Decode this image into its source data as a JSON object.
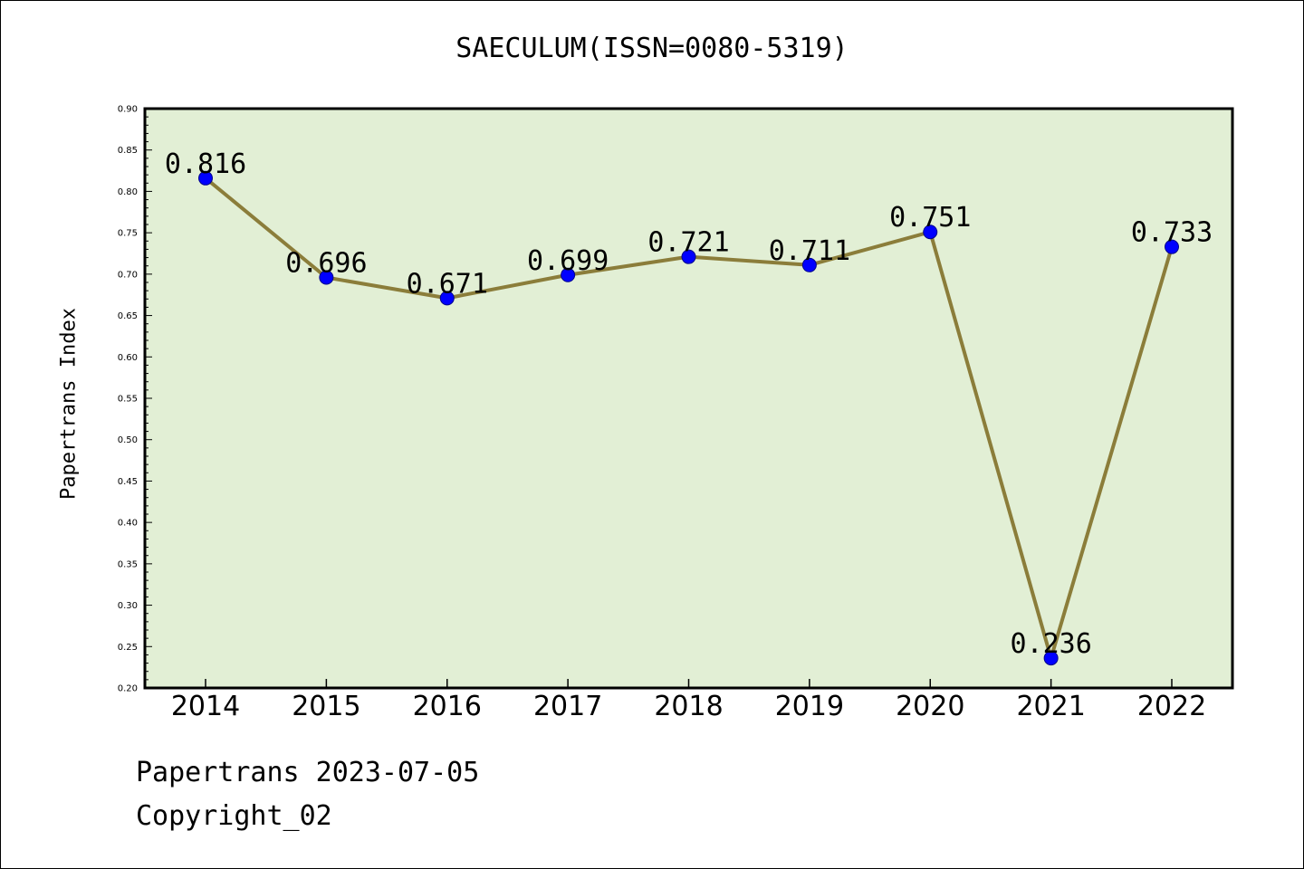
{
  "title": "SAECULUM(ISSN=0080-5319)",
  "footer": {
    "date_line": "Papertrans 2023-07-05",
    "copyright": "Copyright_02"
  },
  "colors": {
    "plot_background": "#e2efd5",
    "line": "#8b7d3a",
    "marker": "#0000ff"
  },
  "chart_data": {
    "type": "line",
    "title": "SAECULUM(ISSN=0080-5319)",
    "xlabel": "",
    "ylabel": "Papertrans Index",
    "categories": [
      "2014",
      "2015",
      "2016",
      "2017",
      "2018",
      "2019",
      "2020",
      "2021",
      "2022"
    ],
    "series": [
      {
        "values": [
          0.816,
          0.696,
          0.671,
          0.699,
          0.721,
          0.711,
          0.751,
          0.236,
          0.733
        ],
        "labels": [
          "0.816",
          "0.696",
          "0.671",
          "0.699",
          "0.721",
          "0.711",
          "0.751",
          "0.236",
          "0.733"
        ]
      }
    ],
    "ylim": [
      0.2,
      0.9
    ],
    "yticks": [
      "0.20",
      "0.25",
      "0.30",
      "0.35",
      "0.40",
      "0.45",
      "0.50",
      "0.55",
      "0.60",
      "0.65",
      "0.70",
      "0.75",
      "0.80",
      "0.85",
      "0.90"
    ],
    "grid": false,
    "legend": "none"
  }
}
